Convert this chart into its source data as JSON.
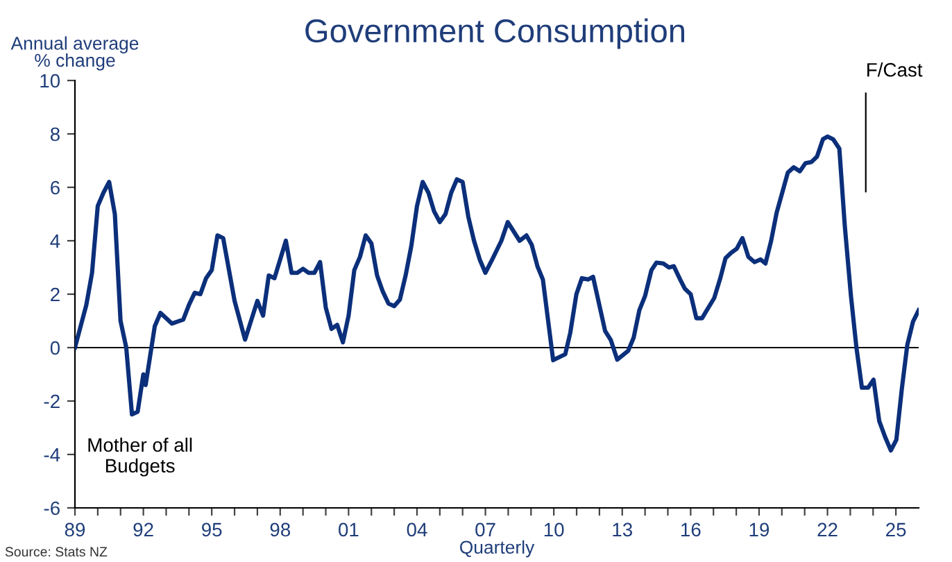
{
  "chart_data": {
    "type": "line",
    "title": "Government Consumption",
    "ylabel": "Annual average\n% change",
    "xlabel": "Quarterly",
    "annotations": [
      "Mother of all\nBudgets",
      "Source: Stats NZ"
    ],
    "series": [
      {
        "color": "#0b2f7a",
        "x": [
          1989.0,
          1989.5,
          1989.75,
          1990.0,
          1990.25,
          1990.5,
          1990.75,
          1991.0,
          1991.25,
          1991.5,
          1991.75,
          1992.0,
          1992.1,
          1992.5,
          1992.75,
          1993.25,
          1993.75,
          1994.0,
          1994.25,
          1994.5,
          1994.75,
          1995.0,
          1995.25,
          1995.5,
          1996.0,
          1996.46,
          1997.0,
          1997.25,
          1997.5,
          1997.75,
          1998.25,
          1998.5,
          1998.75,
          1999.0,
          1999.25,
          1999.5,
          1999.75,
          2000.0,
          2000.25,
          2000.5,
          2000.75,
          2001.0,
          2001.25,
          2001.5,
          2001.75,
          2002.0,
          2002.25,
          2002.5,
          2002.75,
          2003.0,
          2003.25,
          2003.5,
          2003.75,
          2004.0,
          2004.25,
          2004.5,
          2004.75,
          2005.0,
          2005.25,
          2005.5,
          2005.75,
          2006.0,
          2006.25,
          2006.5,
          2006.75,
          2007.0,
          2007.3,
          2007.7,
          2007.98,
          2008.5,
          2008.8,
          2009.03,
          2009.28,
          2009.52,
          2009.97,
          2010.5,
          2010.72,
          2010.99,
          2011.23,
          2011.5,
          2011.72,
          2012.25,
          2012.5,
          2012.78,
          2013.26,
          2013.5,
          2013.75,
          2014.0,
          2014.28,
          2014.5,
          2014.8,
          2015.05,
          2015.26,
          2015.54,
          2015.75,
          2016.0,
          2016.25,
          2016.5,
          2016.78,
          2017.03,
          2017.3,
          2017.53,
          2017.78,
          2018.02,
          2018.27,
          2018.53,
          2018.8,
          2019.06,
          2019.28,
          2019.53,
          2019.77,
          2020.0,
          2020.26,
          2020.52,
          2020.79,
          2021.03,
          2021.3,
          2021.54,
          2021.8,
          2022.0,
          2022.25,
          2022.52,
          2022.76,
          2023.03,
          2023.27,
          2023.51,
          2023.78,
          2024.02,
          2024.27,
          2024.53,
          2024.78,
          2025.02,
          2025.26,
          2025.5,
          2025.75,
          2026.0
        ],
        "values": [
          0,
          1.6,
          2.8,
          5.3,
          5.8,
          6.2,
          5.0,
          1.0,
          0,
          -2.5,
          -2.4,
          -1.0,
          -1.4,
          0.8,
          1.3,
          0.9,
          1.05,
          1.6,
          2.05,
          2.0,
          2.6,
          2.9,
          4.2,
          4.1,
          1.75,
          0.3,
          1.75,
          1.2,
          2.7,
          2.6,
          4.0,
          2.8,
          2.8,
          2.95,
          2.8,
          2.8,
          3.2,
          1.5,
          0.7,
          0.85,
          0.2,
          1.2,
          2.9,
          3.4,
          4.2,
          3.9,
          2.7,
          2.1,
          1.65,
          1.55,
          1.8,
          2.7,
          3.8,
          5.3,
          6.2,
          5.8,
          5.1,
          4.7,
          5.0,
          5.8,
          6.3,
          6.2,
          4.9,
          4.0,
          3.3,
          2.8,
          3.3,
          4.0,
          4.7,
          4.0,
          4.2,
          3.85,
          3.05,
          2.55,
          -0.47,
          -0.25,
          0.55,
          2.0,
          2.6,
          2.55,
          2.65,
          0.62,
          0.28,
          -0.45,
          -0.12,
          0.37,
          1.4,
          1.93,
          2.9,
          3.18,
          3.15,
          3.0,
          3.05,
          2.55,
          2.2,
          2.0,
          1.1,
          1.1,
          1.5,
          1.85,
          2.6,
          3.35,
          3.55,
          3.7,
          4.1,
          3.4,
          3.2,
          3.3,
          3.15,
          4.0,
          5.05,
          5.75,
          6.55,
          6.75,
          6.6,
          6.9,
          6.95,
          7.15,
          7.8,
          7.9,
          7.8,
          7.45,
          4.55,
          1.93,
          0,
          -1.5,
          -1.5,
          -1.2,
          -2.75,
          -3.35,
          -3.85,
          -3.45,
          -1.55,
          0.1,
          0.97,
          1.4
        ]
      }
    ],
    "xlim": [
      1989,
      2026
    ],
    "xticks": [
      {
        "value": 1989,
        "label": "89"
      },
      {
        "value": 1990,
        "label": null
      },
      {
        "value": 1991,
        "label": null
      },
      {
        "value": 1992,
        "label": "92"
      },
      {
        "value": 1993,
        "label": null
      },
      {
        "value": 1994,
        "label": null
      },
      {
        "value": 1995,
        "label": "95"
      },
      {
        "value": 1996,
        "label": null
      },
      {
        "value": 1997,
        "label": null
      },
      {
        "value": 1998,
        "label": "98"
      },
      {
        "value": 1999,
        "label": null
      },
      {
        "value": 2000,
        "label": null
      },
      {
        "value": 2001,
        "label": "01"
      },
      {
        "value": 2002,
        "label": null
      },
      {
        "value": 2003,
        "label": null
      },
      {
        "value": 2004,
        "label": "04"
      },
      {
        "value": 2005,
        "label": null
      },
      {
        "value": 2006,
        "label": null
      },
      {
        "value": 2007,
        "label": "07"
      },
      {
        "value": 2008,
        "label": null
      },
      {
        "value": 2009,
        "label": null
      },
      {
        "value": 2010,
        "label": "10"
      },
      {
        "value": 2011,
        "label": null
      },
      {
        "value": 2012,
        "label": null
      },
      {
        "value": 2013,
        "label": "13"
      },
      {
        "value": 2014,
        "label": null
      },
      {
        "value": 2015,
        "label": null
      },
      {
        "value": 2016,
        "label": "16"
      },
      {
        "value": 2017,
        "label": null
      },
      {
        "value": 2018,
        "label": null
      },
      {
        "value": 2019,
        "label": "19"
      },
      {
        "value": 2020,
        "label": null
      },
      {
        "value": 2021,
        "label": null
      },
      {
        "value": 2022,
        "label": "22"
      },
      {
        "value": 2023,
        "label": null
      },
      {
        "value": 2024,
        "label": null
      },
      {
        "value": 2025,
        "label": "25"
      }
    ],
    "ylim": [
      -6,
      10
    ],
    "yticks": [
      -6,
      -4,
      -2,
      0,
      2,
      4,
      6,
      8,
      10
    ],
    "ref_lines": [
      {
        "axis": "y",
        "value": 0,
        "color": "#000000"
      },
      {
        "axis": "x",
        "value": 2023.68,
        "label": "F/Cast",
        "color": "#000000"
      }
    ],
    "grid": false,
    "legend": false,
    "marker": "none",
    "line_style": "solid"
  }
}
